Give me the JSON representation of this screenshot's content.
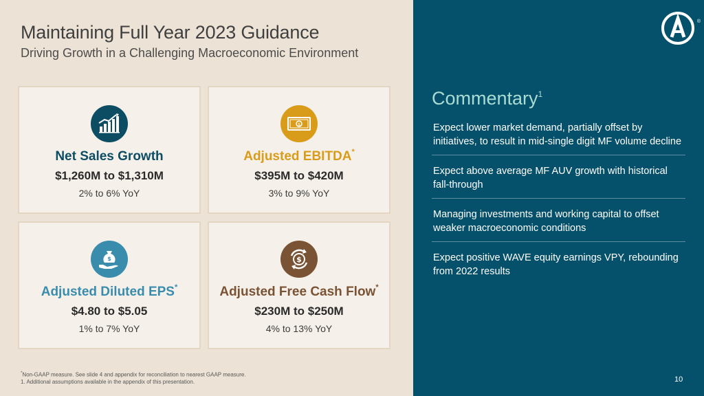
{
  "slide": {
    "title": "Maintaining Full Year 2023 Guidance",
    "subtitle": "Driving Growth in a Challenging Macroeconomic Environment",
    "page_number": "10"
  },
  "colors": {
    "left_bg": "#ece3d6",
    "right_bg": "#05506a",
    "card_bg": "#f5f1ea",
    "card_border": "#e5d6c3",
    "net_sales": "#0d4d64",
    "ebitda": "#d99c1a",
    "eps": "#3a8cad",
    "fcf": "#7a5234",
    "commentary_title": "#a9dcd3"
  },
  "cards": [
    {
      "title": "Net Sales Growth",
      "marker": "",
      "value": "$1,260M to $1,310M",
      "yoy": "2% to 6% YoY",
      "icon": "chart-growth-icon"
    },
    {
      "title": "Adjusted EBITDA",
      "marker": "*",
      "value": "$395M to $420M",
      "yoy": "3% to 9% YoY",
      "icon": "banknote-icon"
    },
    {
      "title": "Adjusted Diluted EPS",
      "marker": "*",
      "value": "$4.80 to $5.05",
      "yoy": "1% to 7% YoY",
      "icon": "money-bag-hand-icon"
    },
    {
      "title": "Adjusted Free Cash Flow",
      "marker": "*",
      "value": "$230M to $250M",
      "yoy": "4% to 13% YoY",
      "icon": "dollar-cycle-icon"
    }
  ],
  "commentary": {
    "title": "Commentary",
    "marker": "1",
    "items": [
      "Expect lower market demand, partially offset by initiatives, to result in mid-single digit MF volume decline",
      "Expect above average MF AUV growth with historical fall-through",
      "Managing investments and working capital to offset weaker macroeconomic conditions",
      "Expect positive WAVE equity earnings VPY, rebounding from 2022 results"
    ]
  },
  "footnotes": {
    "marker": "*",
    "line1": "Non-GAAP measure. See slide 4 and appendix for reconciliation to nearest GAAP measure.",
    "line2": "1. Additional assumptions available in the appendix of this presentation."
  },
  "logo": {
    "letter": "A",
    "trademark": "®"
  }
}
